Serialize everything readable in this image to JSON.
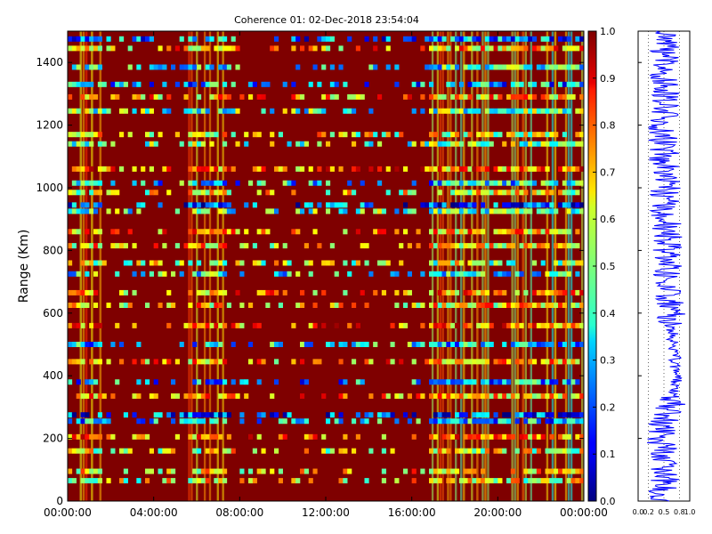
{
  "chart_data": [
    {
      "type": "heatmap",
      "title": "Coherence 01: 02-Dec-2018 23:54:04",
      "ylabel": "Range (Km)",
      "xlabel": "",
      "x_ticks": [
        "00:00:00",
        "04:00:00",
        "08:00:00",
        "12:00:00",
        "16:00:00",
        "20:00:00",
        "00:00:00"
      ],
      "xlim_hours": [
        0,
        24
      ],
      "y_ticks": [
        "0",
        "200",
        "400",
        "600",
        "800",
        "1000",
        "1200",
        "1400"
      ],
      "ylim": [
        0,
        1500
      ],
      "colorbar": {
        "colormap": "jet",
        "range": [
          0,
          1
        ],
        "ticks": [
          "0.0",
          "0.1",
          "0.2",
          "0.3",
          "0.4",
          "0.5",
          "0.6",
          "0.7",
          "0.8",
          "0.9",
          "1.0"
        ]
      },
      "background_value": 1.0,
      "horizontal_bands": [
        {
          "range_km": 1475,
          "value": 0.25
        },
        {
          "range_km": 1445,
          "value": 0.7
        },
        {
          "range_km": 1385,
          "value": 0.4
        },
        {
          "range_km": 1330,
          "value": 0.3
        },
        {
          "range_km": 1290,
          "value": 0.7
        },
        {
          "range_km": 1245,
          "value": 0.45
        },
        {
          "range_km": 1170,
          "value": 0.6
        },
        {
          "range_km": 1140,
          "value": 0.5
        },
        {
          "range_km": 1060,
          "value": 0.75
        },
        {
          "range_km": 1015,
          "value": 0.35
        },
        {
          "range_km": 985,
          "value": 0.6
        },
        {
          "range_km": 945,
          "value": 0.2
        },
        {
          "range_km": 925,
          "value": 0.45
        },
        {
          "range_km": 860,
          "value": 0.7
        },
        {
          "range_km": 815,
          "value": 0.65
        },
        {
          "range_km": 760,
          "value": 0.55
        },
        {
          "range_km": 725,
          "value": 0.4
        },
        {
          "range_km": 665,
          "value": 0.7
        },
        {
          "range_km": 625,
          "value": 0.65
        },
        {
          "range_km": 560,
          "value": 0.75
        },
        {
          "range_km": 500,
          "value": 0.35
        },
        {
          "range_km": 445,
          "value": 0.7
        },
        {
          "range_km": 380,
          "value": 0.3
        },
        {
          "range_km": 335,
          "value": 0.7
        },
        {
          "range_km": 275,
          "value": 0.2
        },
        {
          "range_km": 255,
          "value": 0.3
        },
        {
          "range_km": 205,
          "value": 0.75
        },
        {
          "range_km": 160,
          "value": 0.6
        },
        {
          "range_km": 95,
          "value": 0.65
        },
        {
          "range_km": 65,
          "value": 0.6
        }
      ],
      "vertical_bands_hours": [
        {
          "start": 0.3,
          "end": 1.6,
          "value": 0.7
        },
        {
          "start": 5.6,
          "end": 7.3,
          "value": 0.75
        },
        {
          "start": 16.8,
          "end": 18.0,
          "value": 0.65
        },
        {
          "start": 18.0,
          "end": 22.0,
          "value": 0.6
        },
        {
          "start": 22.0,
          "end": 24.0,
          "value": 0.55
        }
      ]
    },
    {
      "type": "line",
      "title": "",
      "x_ticks": [
        "0.0",
        "0.2",
        "0.5",
        "0.8",
        "1.0"
      ],
      "xlim": [
        0,
        1
      ],
      "ylim": [
        0,
        1500
      ],
      "color": "#0000ff",
      "series_description_mean": [
        {
          "y": 1500,
          "x": 0.55
        },
        {
          "y": 1300,
          "x": 0.5
        },
        {
          "y": 1100,
          "x": 0.5
        },
        {
          "y": 900,
          "x": 0.55
        },
        {
          "y": 700,
          "x": 0.6
        },
        {
          "y": 550,
          "x": 0.65
        },
        {
          "y": 400,
          "x": 0.75
        },
        {
          "y": 320,
          "x": 0.7
        },
        {
          "y": 250,
          "x": 0.45
        },
        {
          "y": 100,
          "x": 0.5
        },
        {
          "y": 0,
          "x": 0.5
        }
      ]
    }
  ]
}
